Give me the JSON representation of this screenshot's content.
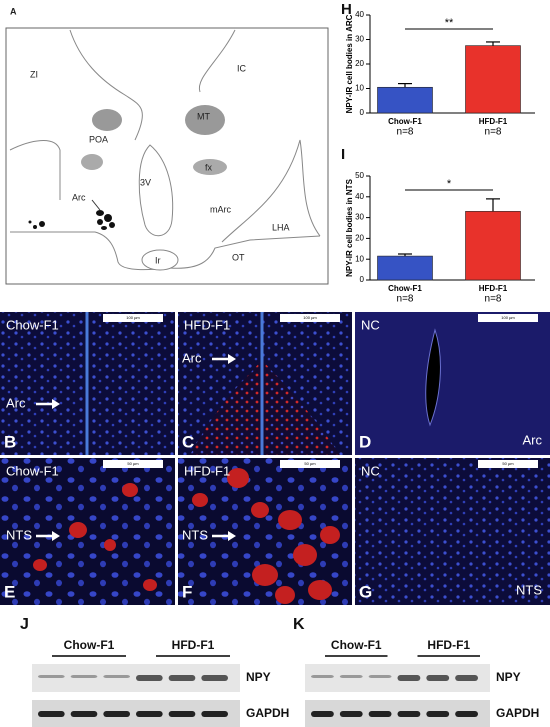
{
  "panel_a": {
    "letter": "A",
    "labels": [
      "ZI",
      "IC",
      "MT",
      "POA",
      "fx",
      "3V",
      "mArc",
      "Arc",
      "LHA",
      "Ir",
      "OT"
    ]
  },
  "chart_data": [
    {
      "type": "bar",
      "panel": "H",
      "ylabel": "NPY-IR cell bodies in ARC",
      "categories": [
        "Chow-F1",
        "HFD-F1"
      ],
      "n_labels": [
        "n=8",
        "n=8"
      ],
      "values": [
        10.5,
        27.5
      ],
      "errors": [
        1.5,
        1.5
      ],
      "colors": [
        "#3653c4",
        "#e8322b"
      ],
      "ylim": [
        0,
        40
      ],
      "yticks": [
        0,
        10,
        20,
        30,
        40
      ],
      "significance": "**"
    },
    {
      "type": "bar",
      "panel": "I",
      "ylabel": "NPY-IR cell bodies in NTS",
      "categories": [
        "Chow-F1",
        "HFD-F1"
      ],
      "n_labels": [
        "n=8",
        "n=8"
      ],
      "values": [
        11.5,
        33
      ],
      "errors": [
        1,
        6
      ],
      "colors": [
        "#3653c4",
        "#e8322b"
      ],
      "ylim": [
        0,
        50
      ],
      "yticks": [
        0,
        10,
        20,
        30,
        40,
        50
      ],
      "significance": "*"
    }
  ],
  "micrographs": [
    {
      "letter": "B",
      "label": "Chow-F1",
      "region": "Arc",
      "scale": "100 µm"
    },
    {
      "letter": "C",
      "label": "HFD-F1",
      "region": "Arc",
      "scale": "100 µm"
    },
    {
      "letter": "D",
      "label": "NC",
      "region": "Arc",
      "scale": "100 µm"
    },
    {
      "letter": "E",
      "label": "Chow-F1",
      "region": "NTS",
      "scale": "50 µm"
    },
    {
      "letter": "F",
      "label": "HFD-F1",
      "region": "NTS",
      "scale": "50 µm"
    },
    {
      "letter": "G",
      "label": "NC",
      "region": "NTS",
      "scale": "50 µm"
    }
  ],
  "blots": [
    {
      "letter": "J",
      "groups": [
        "Chow-F1",
        "HFD-F1"
      ],
      "bands": [
        "NPY",
        "GAPDH"
      ]
    },
    {
      "letter": "K",
      "groups": [
        "Chow-F1",
        "HFD-F1"
      ],
      "bands": [
        "NPY",
        "GAPDH"
      ]
    }
  ]
}
